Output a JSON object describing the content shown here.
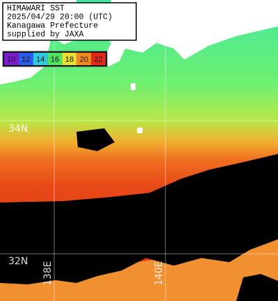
{
  "header": {
    "lines": [
      "HIMAWARI SST",
      "2025/04/29 20:00 (UTC)",
      "Kanagawa Prefecture",
      "supplied by JAXA"
    ]
  },
  "legend": {
    "items": [
      {
        "label": "10",
        "color": "#7a1fc8"
      },
      {
        "label": "12",
        "color": "#2a5cf0"
      },
      {
        "label": "14",
        "color": "#30c8e0"
      },
      {
        "label": "16",
        "color": "#50e060"
      },
      {
        "label": "18",
        "color": "#e8e030"
      },
      {
        "label": "20",
        "color": "#f08a20"
      },
      {
        "label": "22",
        "color": "#e82818"
      }
    ]
  },
  "grid_labels": {
    "lat": [
      "34N",
      "32N"
    ],
    "lon": [
      "138E",
      "140E"
    ]
  }
}
